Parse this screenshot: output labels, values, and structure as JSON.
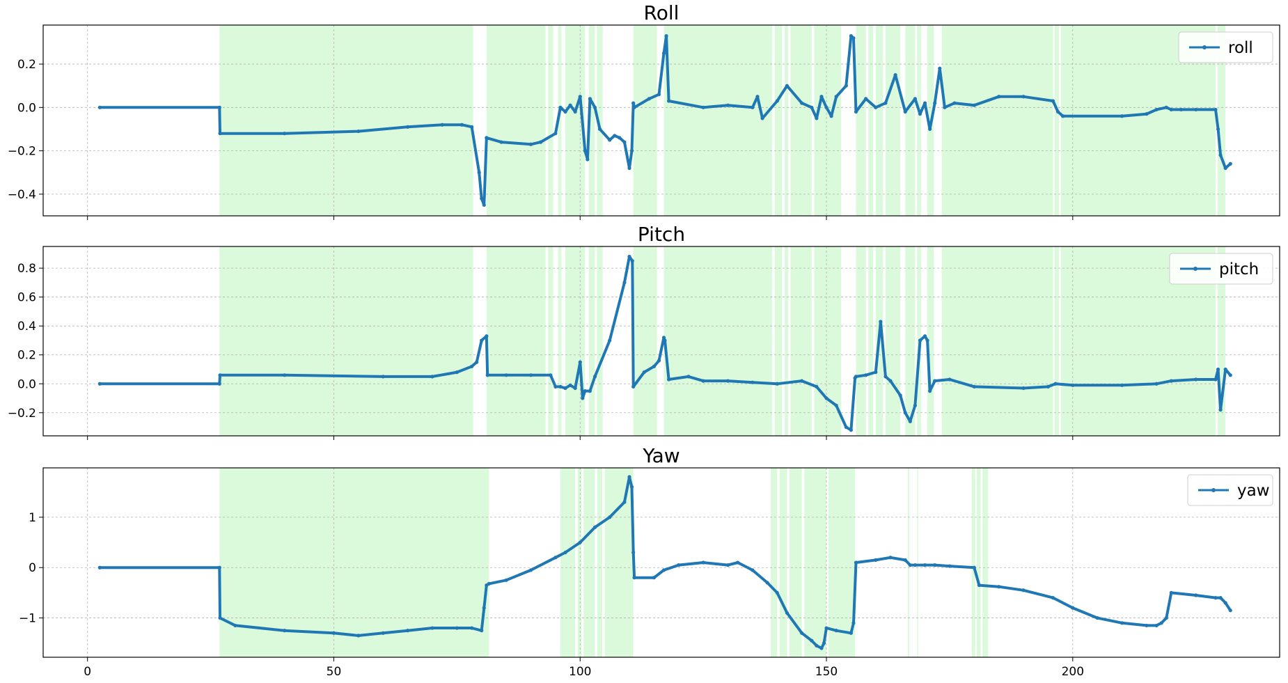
{
  "figure": {
    "background": "#ffffff"
  },
  "chart_data": [
    {
      "type": "line",
      "title": "Roll",
      "xlim": [
        -9,
        242
      ],
      "ylim": [
        -0.5,
        0.38
      ],
      "xticks": [
        0,
        50,
        100,
        150,
        200
      ],
      "yticks": [
        -0.4,
        -0.2,
        0.0,
        0.2
      ],
      "ytick_labels": [
        "−0.4",
        "−0.2",
        "0.0",
        "0.2"
      ],
      "show_xtick_labels": false,
      "grid": true,
      "legend_position": "top-right",
      "series": [
        {
          "name": "roll",
          "color": "#1f77b4",
          "x": [
            2.5,
            26.8,
            26.9,
            40,
            55,
            65,
            72,
            76,
            78,
            79.5,
            80,
            80.5,
            81,
            84,
            90,
            92,
            95,
            96,
            97,
            98,
            99,
            100,
            101,
            101.5,
            102,
            103,
            104,
            106,
            107,
            108,
            109,
            110,
            110.5,
            110.8,
            111,
            114,
            116,
            117,
            117.5,
            118,
            125,
            130,
            135,
            136,
            137,
            140,
            142,
            145,
            147,
            148,
            149,
            150,
            151,
            152,
            154,
            155,
            155.5,
            156,
            158,
            160,
            162,
            164,
            166,
            168,
            169,
            170,
            171,
            172,
            173,
            174,
            176,
            180,
            185,
            190,
            196,
            197,
            198,
            210,
            215,
            217,
            219,
            220,
            222,
            225,
            229,
            229.5,
            230,
            231,
            232
          ],
          "y": [
            0,
            0,
            -0.12,
            -0.12,
            -0.11,
            -0.09,
            -0.08,
            -0.08,
            -0.09,
            -0.3,
            -0.42,
            -0.45,
            -0.14,
            -0.16,
            -0.17,
            -0.16,
            -0.12,
            0.0,
            -0.02,
            0.01,
            -0.02,
            0.05,
            -0.2,
            -0.24,
            0.04,
            0.0,
            -0.1,
            -0.15,
            -0.13,
            -0.14,
            -0.16,
            -0.28,
            -0.2,
            0.02,
            0.0,
            0.04,
            0.06,
            0.25,
            0.33,
            0.03,
            0.0,
            0.01,
            0.0,
            0.05,
            -0.05,
            0.03,
            0.1,
            0.02,
            0.0,
            -0.05,
            0.05,
            0.0,
            -0.04,
            0.05,
            0.1,
            0.33,
            0.32,
            -0.02,
            0.04,
            0.0,
            0.02,
            0.15,
            -0.02,
            0.04,
            -0.03,
            0.02,
            -0.1,
            0.02,
            0.18,
            0.0,
            0.02,
            0.01,
            0.05,
            0.05,
            0.03,
            -0.02,
            -0.04,
            -0.04,
            -0.03,
            -0.01,
            0.0,
            -0.01,
            -0.01,
            -0.01,
            -0.01,
            -0.1,
            -0.22,
            -0.28,
            -0.26
          ]
        }
      ],
      "highlight_spans": [
        [
          26.8,
          78.3
        ],
        [
          81,
          93
        ],
        [
          93.5,
          94.5
        ],
        [
          95.5,
          96.2
        ],
        [
          97,
          101
        ],
        [
          101.8,
          103
        ],
        [
          103.4,
          104.6
        ],
        [
          110.8,
          115.6
        ],
        [
          117,
          139
        ],
        [
          139.5,
          141
        ],
        [
          141.5,
          142.2
        ],
        [
          142.7,
          147
        ],
        [
          147.5,
          153
        ],
        [
          156,
          158
        ],
        [
          158.5,
          159.5
        ],
        [
          160,
          161.5
        ],
        [
          162,
          165
        ],
        [
          166,
          168
        ],
        [
          168.4,
          169.2
        ],
        [
          170.5,
          171.8
        ],
        [
          173.4,
          196
        ],
        [
          196.3,
          197.2
        ],
        [
          197.6,
          229
        ],
        [
          229.4,
          231
        ]
      ]
    },
    {
      "type": "line",
      "title": "Pitch",
      "xlim": [
        -9,
        242
      ],
      "ylim": [
        -0.36,
        0.95
      ],
      "xticks": [
        0,
        50,
        100,
        150,
        200
      ],
      "yticks": [
        -0.2,
        0.0,
        0.2,
        0.4,
        0.6,
        0.8
      ],
      "ytick_labels": [
        "−0.2",
        "0.0",
        "0.2",
        "0.4",
        "0.6",
        "0.8"
      ],
      "show_xtick_labels": false,
      "grid": true,
      "legend_position": "top-right",
      "series": [
        {
          "name": "pitch",
          "color": "#1f77b4",
          "x": [
            2.5,
            26.8,
            26.9,
            40,
            60,
            70,
            75,
            78,
            79,
            80,
            81,
            81.2,
            85,
            90,
            94,
            95,
            96,
            97,
            98,
            99,
            100,
            100.5,
            101,
            102,
            103,
            106,
            109,
            110,
            110.6,
            110.8,
            113,
            115,
            116,
            117,
            117.2,
            118,
            122,
            125,
            130,
            135,
            140,
            145,
            148,
            150,
            152,
            154,
            155,
            155.8,
            156,
            158,
            160,
            161,
            162,
            163,
            165,
            166,
            167,
            168,
            169,
            170,
            170.5,
            171,
            172,
            175,
            180,
            190,
            195,
            196.5,
            200,
            210,
            217,
            220,
            225,
            229,
            229.5,
            230,
            231,
            232
          ],
          "y": [
            0,
            0,
            0.06,
            0.06,
            0.05,
            0.05,
            0.08,
            0.12,
            0.15,
            0.3,
            0.33,
            0.06,
            0.06,
            0.06,
            0.06,
            -0.02,
            -0.02,
            -0.03,
            -0.01,
            -0.03,
            0.15,
            -0.1,
            -0.05,
            -0.05,
            0.05,
            0.3,
            0.7,
            0.88,
            0.85,
            -0.02,
            0.08,
            0.12,
            0.16,
            0.32,
            0.3,
            0.03,
            0.05,
            0.02,
            0.02,
            0.01,
            0.0,
            0.02,
            -0.02,
            -0.1,
            -0.15,
            -0.3,
            -0.32,
            0.04,
            0.05,
            0.06,
            0.08,
            0.43,
            0.05,
            0.02,
            -0.08,
            -0.2,
            -0.26,
            -0.15,
            0.3,
            0.33,
            0.3,
            -0.05,
            0.02,
            0.03,
            -0.02,
            -0.03,
            -0.02,
            0.0,
            -0.01,
            -0.01,
            0.0,
            0.02,
            0.03,
            0.03,
            0.1,
            -0.18,
            0.1,
            0.06
          ]
        }
      ],
      "highlight_spans": [
        [
          26.8,
          78.3
        ],
        [
          81,
          93
        ],
        [
          93.5,
          94.5
        ],
        [
          95.5,
          96.2
        ],
        [
          97,
          101
        ],
        [
          101.8,
          103
        ],
        [
          103.4,
          104.6
        ],
        [
          110.8,
          115.6
        ],
        [
          117,
          139
        ],
        [
          139.5,
          141
        ],
        [
          141.5,
          142.2
        ],
        [
          142.7,
          147
        ],
        [
          147.5,
          153
        ],
        [
          156,
          158
        ],
        [
          158.5,
          159.5
        ],
        [
          160,
          161.5
        ],
        [
          162,
          165
        ],
        [
          166,
          168
        ],
        [
          168.4,
          169.2
        ],
        [
          170.5,
          171.8
        ],
        [
          173.4,
          196
        ],
        [
          196.3,
          197.2
        ],
        [
          197.6,
          229
        ],
        [
          229.4,
          231
        ]
      ]
    },
    {
      "type": "line",
      "title": "Yaw",
      "xlim": [
        -9,
        242
      ],
      "ylim": [
        -1.78,
        1.98
      ],
      "xticks": [
        0,
        50,
        100,
        150,
        200
      ],
      "yticks": [
        -1,
        0,
        1
      ],
      "ytick_labels": [
        "−1",
        "0",
        "1"
      ],
      "xtick_labels": [
        "0",
        "50",
        "100",
        "150",
        "200"
      ],
      "show_xtick_labels": true,
      "grid": true,
      "legend_position": "top-right",
      "series": [
        {
          "name": "yaw",
          "color": "#1f77b4",
          "x": [
            2.5,
            26.8,
            26.9,
            30,
            40,
            50,
            55,
            60,
            65,
            70,
            75,
            78,
            80,
            80.5,
            81,
            81.5,
            85,
            90,
            95,
            97,
            100,
            103,
            106,
            109,
            110,
            110.5,
            110.8,
            111,
            115,
            117,
            120,
            125,
            130,
            132,
            135,
            138,
            140,
            142,
            145,
            147,
            148,
            149,
            149.5,
            150,
            152,
            155,
            155.5,
            156,
            160,
            163,
            166,
            167,
            168,
            170,
            172,
            175,
            180,
            181,
            185,
            190,
            196,
            200,
            205,
            210,
            215,
            217,
            218,
            219,
            220,
            225,
            229,
            230,
            231,
            232
          ],
          "y": [
            0,
            0,
            -1.0,
            -1.15,
            -1.25,
            -1.3,
            -1.35,
            -1.3,
            -1.25,
            -1.2,
            -1.2,
            -1.2,
            -1.25,
            -0.8,
            -0.35,
            -0.32,
            -0.25,
            -0.05,
            0.2,
            0.3,
            0.5,
            0.8,
            1.0,
            1.3,
            1.8,
            1.6,
            0.3,
            -0.2,
            -0.2,
            -0.05,
            0.05,
            0.1,
            0.05,
            0.1,
            -0.05,
            -0.3,
            -0.5,
            -0.9,
            -1.3,
            -1.45,
            -1.55,
            -1.6,
            -1.5,
            -1.2,
            -1.25,
            -1.3,
            -1.1,
            0.1,
            0.15,
            0.2,
            0.15,
            0.05,
            0.05,
            0.05,
            0.05,
            0.03,
            0.0,
            -0.35,
            -0.38,
            -0.45,
            -0.6,
            -0.8,
            -1.0,
            -1.1,
            -1.15,
            -1.15,
            -1.1,
            -1.0,
            -0.5,
            -0.55,
            -0.6,
            -0.6,
            -0.7,
            -0.85
          ]
        }
      ],
      "highlight_spans": [
        [
          26.8,
          81.5
        ],
        [
          96,
          99
        ],
        [
          99.5,
          100.3
        ],
        [
          100.7,
          103
        ],
        [
          103.5,
          104.5
        ],
        [
          105,
          110.8
        ],
        [
          138.7,
          140
        ],
        [
          140.5,
          142
        ],
        [
          142.5,
          145
        ],
        [
          145.5,
          150
        ],
        [
          150.4,
          155.8
        ],
        [
          166.5,
          166.8
        ],
        [
          168.4,
          168.6
        ],
        [
          179.5,
          180.2
        ],
        [
          180.5,
          181.3
        ],
        [
          181.7,
          182.8
        ]
      ]
    }
  ]
}
